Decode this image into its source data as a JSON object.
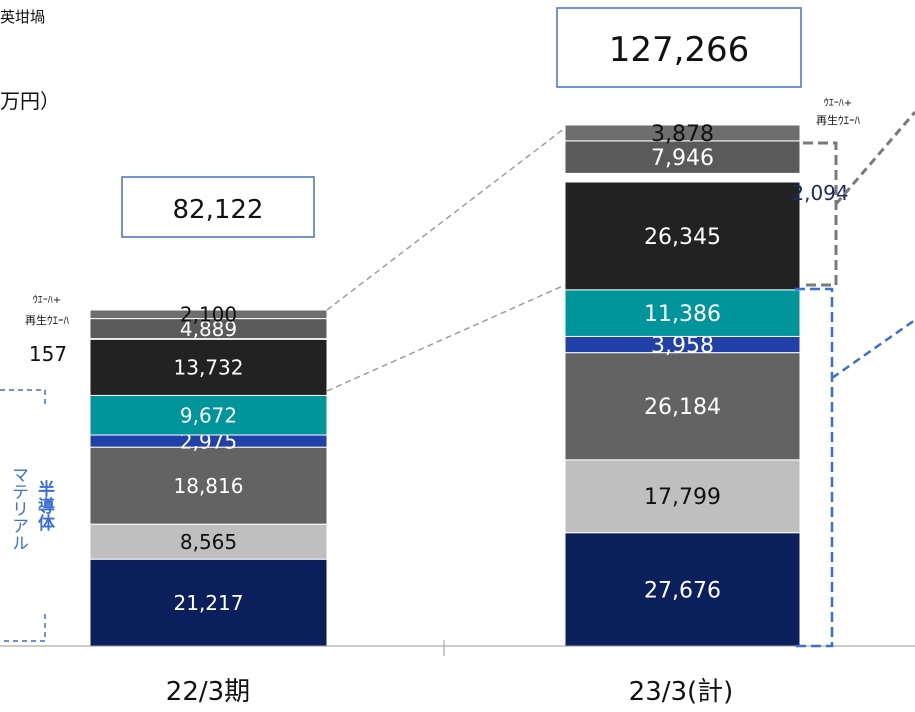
{
  "header": {
    "top_text": "英坩堝",
    "unit_label": "万円）"
  },
  "colors": {
    "navy": "#0b1f5c",
    "light_gray": "#bfbfbf",
    "mid_gray": "#636363",
    "blue": "#2140a8",
    "teal": "#00959a",
    "black": "#222222",
    "gray2": "#5a5a5a",
    "gray3": "#6e6e6e",
    "accent_blue": "#3a6fd8"
  },
  "annotations": {
    "wafer_label_line1": "ｳｴｰﾊ+",
    "wafer_label_line2": "再生ｳｴｰﾊ",
    "bar1_side_value": "157",
    "bar2_side_value": "2,094",
    "semiconductor_material_col1": "マテリアル",
    "semiconductor_material_col2": "半導体"
  },
  "chart_data": {
    "type": "bar",
    "stacked": true,
    "categories": [
      "22/3期",
      "23/3(計)"
    ],
    "totals": [
      "82,122",
      "127,266"
    ],
    "total_values": [
      82122,
      127266
    ],
    "series": [
      {
        "values": [
          21217,
          27676
        ],
        "labels": [
          "21,217",
          "27,676"
        ],
        "color": "#0b1f5c",
        "text_color": "#ffffff"
      },
      {
        "values": [
          8565,
          17799
        ],
        "labels": [
          "8,565",
          "17,799"
        ],
        "color": "#bfbfbf",
        "text_color": "#111111"
      },
      {
        "values": [
          18816,
          26184
        ],
        "labels": [
          "18,816",
          "26,184"
        ],
        "color": "#636363",
        "text_color": "#ffffff"
      },
      {
        "values": [
          2975,
          3958
        ],
        "labels": [
          "2,975",
          "3,958"
        ],
        "color": "#2140a8",
        "text_color": "#ffffff"
      },
      {
        "values": [
          9672,
          11386
        ],
        "labels": [
          "9,672",
          "11,386"
        ],
        "color": "#00959a",
        "text_color": "#ffffff"
      },
      {
        "values": [
          13732,
          26345
        ],
        "labels": [
          "13,732",
          "26,345"
        ],
        "color": "#222222",
        "text_color": "#ffffff"
      },
      {
        "values": [
          157,
          2094
        ],
        "labels": [
          "",
          ""
        ],
        "color": "#ffffff",
        "text_color": "#111111"
      },
      {
        "values": [
          4889,
          7946
        ],
        "labels": [
          "4,889",
          "7,946"
        ],
        "color": "#5a5a5a",
        "text_color": "#ffffff"
      },
      {
        "values": [
          2100,
          3878
        ],
        "labels": [
          "2,100",
          "3,878"
        ],
        "color": "#6e6e6e",
        "text_color": "#111111"
      }
    ],
    "legend": "none",
    "grid": false
  }
}
